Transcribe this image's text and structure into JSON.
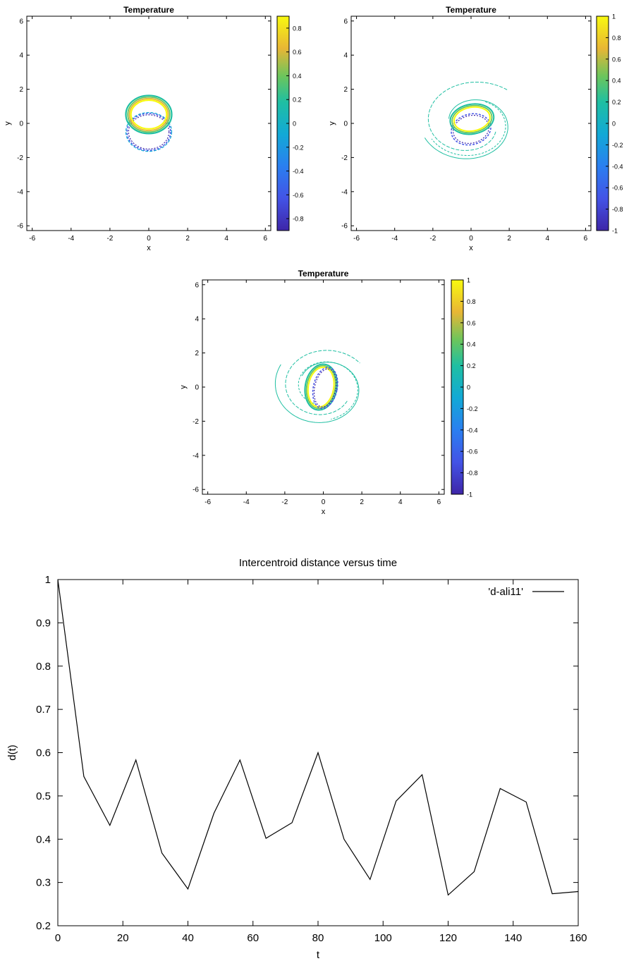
{
  "chart_data": [
    {
      "type": "contour",
      "title": "Temperature",
      "xlabel": "x",
      "ylabel": "y",
      "xlim": [
        -6.28,
        6.28
      ],
      "ylim": [
        -6.28,
        6.28
      ],
      "xticks": [
        "-6",
        "-4",
        "-2",
        "0",
        "2",
        "4",
        "6"
      ],
      "yticks": [
        "-6",
        "-4",
        "-2",
        "0",
        "2",
        "4",
        "6"
      ],
      "colorbar": {
        "min": -0.9,
        "max": 0.9,
        "ticks": [
          "0.8",
          "0.6",
          "0.4",
          "0.2",
          "0",
          "-0.2",
          "-0.4",
          "-0.6",
          "-0.8"
        ]
      }
    },
    {
      "type": "contour",
      "title": "Temperature",
      "xlabel": "x",
      "ylabel": "y",
      "xlim": [
        -6.28,
        6.28
      ],
      "ylim": [
        -6.28,
        6.28
      ],
      "xticks": [
        "-6",
        "-4",
        "-2",
        "0",
        "2",
        "4",
        "6"
      ],
      "yticks": [
        "-6",
        "-4",
        "-2",
        "0",
        "2",
        "4",
        "6"
      ],
      "colorbar": {
        "min": -1,
        "max": 1,
        "ticks": [
          "1",
          "0.8",
          "0.6",
          "0.4",
          "0.2",
          "0",
          "-0.2",
          "-0.4",
          "-0.6",
          "-0.8",
          "-1"
        ]
      }
    },
    {
      "type": "contour",
      "title": "Temperature",
      "xlabel": "x",
      "ylabel": "y",
      "xlim": [
        -6.28,
        6.28
      ],
      "ylim": [
        -6.28,
        6.28
      ],
      "xticks": [
        "-6",
        "-4",
        "-2",
        "0",
        "2",
        "4",
        "6"
      ],
      "yticks": [
        "-6",
        "-4",
        "-2",
        "0",
        "2",
        "4",
        "6"
      ],
      "colorbar": {
        "min": -1,
        "max": 1,
        "ticks": [
          "1",
          "0.8",
          "0.6",
          "0.4",
          "0.2",
          "0",
          "-0.2",
          "-0.4",
          "-0.6",
          "-0.8",
          "-1"
        ]
      }
    },
    {
      "type": "line",
      "title": "Intercentroid distance versus time",
      "xlabel": "t",
      "ylabel": "d(t)",
      "xlim": [
        0,
        160
      ],
      "ylim": [
        0.2,
        1
      ],
      "xticks": [
        "0",
        "20",
        "40",
        "60",
        "80",
        "100",
        "120",
        "140",
        "160"
      ],
      "yticks": [
        "0.2",
        "0.3",
        "0.4",
        "0.5",
        "0.6",
        "0.7",
        "0.8",
        "0.9",
        "1"
      ],
      "legend": "top-right",
      "series": [
        {
          "name": "'d-ali11'",
          "x": [
            0,
            8,
            16,
            24,
            32,
            40,
            48,
            56,
            64,
            72,
            80,
            88,
            96,
            104,
            112,
            120,
            128,
            136,
            144,
            152,
            160
          ],
          "y": [
            1.0,
            0.545,
            0.432,
            0.583,
            0.368,
            0.285,
            0.46,
            0.583,
            0.402,
            0.438,
            0.6,
            0.4,
            0.307,
            0.488,
            0.549,
            0.271,
            0.325,
            0.517,
            0.486,
            0.274,
            0.279
          ]
        }
      ]
    }
  ]
}
